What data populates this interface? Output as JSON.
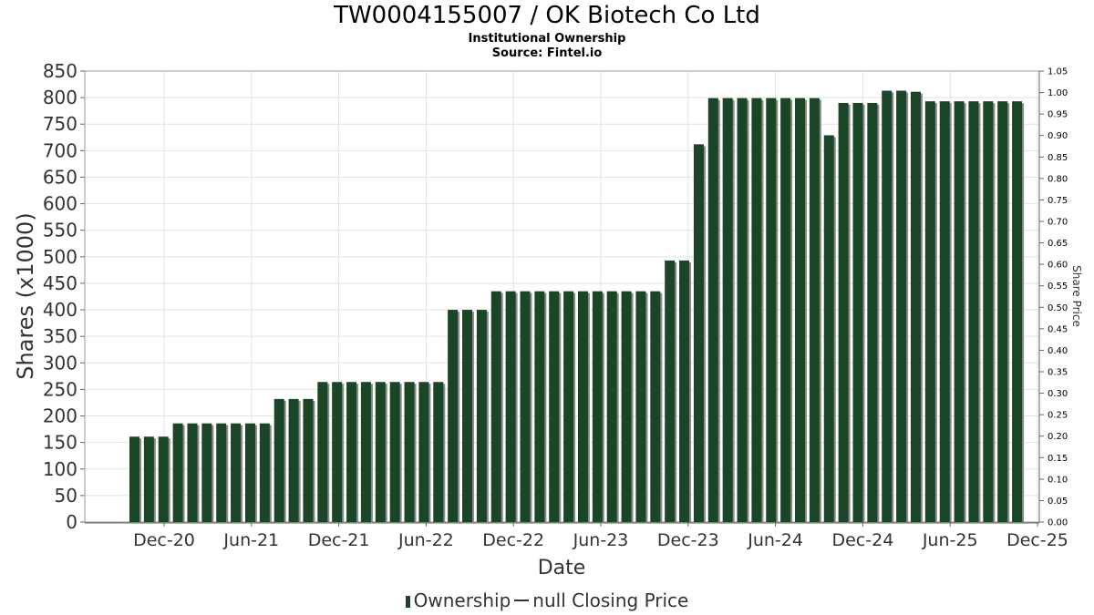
{
  "chart_data": {
    "type": "bar",
    "title": "TW0004155007 / OK Biotech Co Ltd",
    "subtitle": "Institutional Ownership",
    "source": "Source: Fintel.io",
    "xlabel": "Date",
    "ylabel": "Shares (x1000)",
    "y2label": "Share Price",
    "ylim": [
      0,
      850
    ],
    "y_ticks": [
      "0",
      "50",
      "100",
      "150",
      "200",
      "250",
      "300",
      "350",
      "400",
      "450",
      "500",
      "550",
      "600",
      "650",
      "700",
      "750",
      "800",
      "850"
    ],
    "y2lim": [
      0,
      1.05
    ],
    "y2_ticks": [
      "0.00",
      "0.05",
      "0.10",
      "0.15",
      "0.20",
      "0.25",
      "0.30",
      "0.35",
      "0.40",
      "0.45",
      "0.50",
      "0.55",
      "0.60",
      "0.65",
      "0.70",
      "0.75",
      "0.80",
      "0.85",
      "0.90",
      "0.95",
      "1.00",
      "1.05"
    ],
    "x_ticks": [
      "Dec-20",
      "Jun-21",
      "Dec-21",
      "Jun-22",
      "Dec-22",
      "Jun-23",
      "Dec-23",
      "Jun-24",
      "Dec-24",
      "Jun-25",
      "Dec-25"
    ],
    "grid": true,
    "bar_color": "#1a4526",
    "series": [
      {
        "name": "Ownership",
        "values": [
          161,
          161,
          161,
          186,
          186,
          186,
          186,
          186,
          186,
          186,
          232,
          232,
          232,
          264,
          264,
          264,
          264,
          264,
          264,
          264,
          264,
          264,
          400,
          400,
          400,
          435,
          435,
          435,
          435,
          435,
          435,
          435,
          435,
          435,
          435,
          435,
          435,
          493,
          493,
          712,
          799,
          799,
          799,
          799,
          799,
          799,
          799,
          799,
          729,
          790,
          790,
          790,
          813,
          813,
          811,
          793,
          793,
          793,
          793,
          793,
          793,
          793
        ]
      }
    ],
    "legend": {
      "position": "bottom",
      "items": [
        "Ownership",
        "null Closing Price"
      ]
    }
  }
}
